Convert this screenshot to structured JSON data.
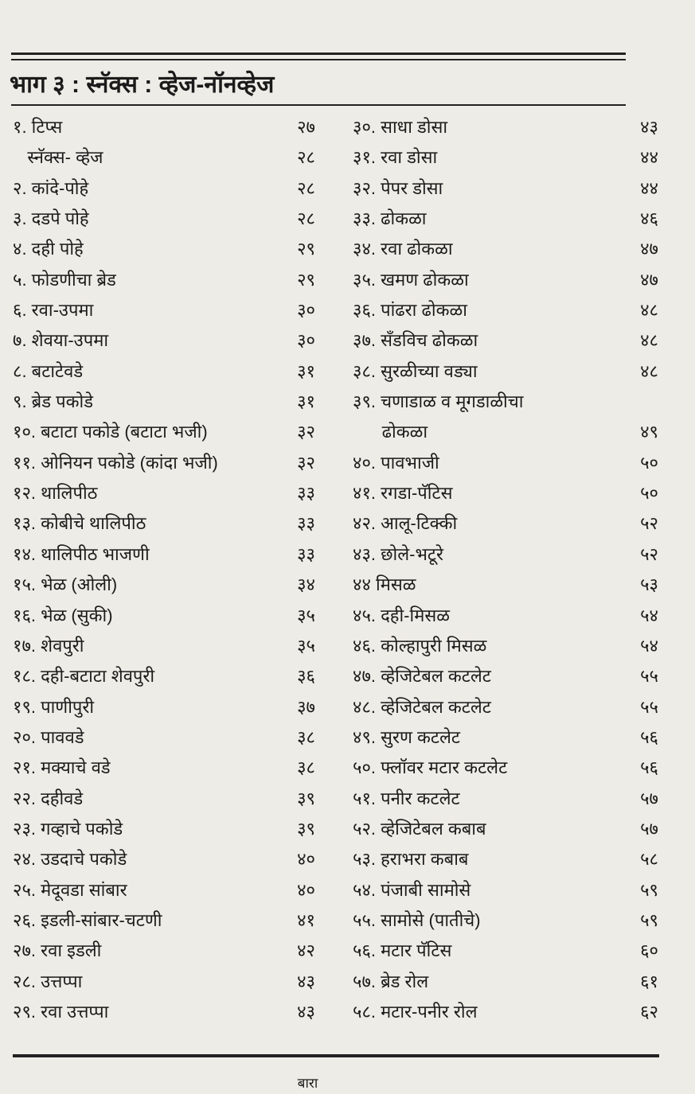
{
  "title": "भाग ३ : स्नॅक्स : व्हेज-नॉनव्हेज",
  "left_entries": [
    {
      "text": "१. टिप्स",
      "page": "२७"
    },
    {
      "text": "   स्नॅक्स- व्हेज",
      "page": "२८"
    },
    {
      "text": "२. कांदे-पोहे",
      "page": "२८"
    },
    {
      "text": "३. दडपे पोहे",
      "page": "२८"
    },
    {
      "text": "४. दही पोहे",
      "page": "२९"
    },
    {
      "text": "५. फोडणीचा ब्रेड",
      "page": "२९"
    },
    {
      "text": "६. रवा-उपमा",
      "page": "३०"
    },
    {
      "text": "७. शेवया-उपमा",
      "page": "३०"
    },
    {
      "text": "८. बटाटेवडे",
      "page": "३१"
    },
    {
      "text": "९. ब्रेड पकोडे",
      "page": "३१"
    },
    {
      "text": "१०. बटाटा पकोडे (बटाटा भजी)",
      "page": "३२"
    },
    {
      "text": "११. ओनियन पकोडे (कांदा भजी)",
      "page": "३२"
    },
    {
      "text": "१२. थालिपीठ",
      "page": "३३"
    },
    {
      "text": "१३. कोबीचे थालिपीठ",
      "page": "३३"
    },
    {
      "text": "१४. थालिपीठ भाजणी",
      "page": "३३"
    },
    {
      "text": "१५. भेळ (ओली)",
      "page": "३४"
    },
    {
      "text": "१६. भेळ (सुकी)",
      "page": "३५"
    },
    {
      "text": "१७. शेवपुरी",
      "page": "३५"
    },
    {
      "text": "१८. दही-बटाटा शेवपुरी",
      "page": "३६"
    },
    {
      "text": "१९. पाणीपुरी",
      "page": "३७"
    },
    {
      "text": "२०. पाववडे",
      "page": "३८"
    },
    {
      "text": "२१. मक्याचे वडे",
      "page": "३८"
    },
    {
      "text": "२२. दहीवडे",
      "page": "३९"
    },
    {
      "text": "२३. गव्हाचे पकोडे",
      "page": "३९"
    },
    {
      "text": "२४. उडदाचे पकोडे",
      "page": "४०"
    },
    {
      "text": "२५. मेदूवडा सांबार",
      "page": "४०"
    },
    {
      "text": "२६. इडली-सांबार-चटणी",
      "page": "४१"
    },
    {
      "text": "२७. रवा इडली",
      "page": "४२"
    },
    {
      "text": "२८. उत्तप्पा",
      "page": "४३"
    },
    {
      "text": "२९. रवा उत्तप्पा",
      "page": "४३"
    }
  ],
  "right_entries": [
    {
      "text": "३०. साधा डोसा",
      "page": "४३"
    },
    {
      "text": "३१. रवा डोसा",
      "page": "४४"
    },
    {
      "text": "३२. पेपर डोसा",
      "page": "४४"
    },
    {
      "text": "३३. ढोकळा",
      "page": "४६"
    },
    {
      "text": "३४. रवा ढोकळा",
      "page": "४७"
    },
    {
      "text": "३५. खमण ढोकळा",
      "page": "४७"
    },
    {
      "text": "३६. पांढरा ढोकळा",
      "page": "४८"
    },
    {
      "text": "३७. सँडविच ढोकळा",
      "page": "४८"
    },
    {
      "text": "३८. सुरळीच्या वड्या",
      "page": "४८"
    },
    {
      "text": "३९. चणाडाळ व मूगडाळीचा",
      "page": ""
    },
    {
      "text": "      ढोकळा",
      "page": "४९"
    },
    {
      "text": "४०. पावभाजी",
      "page": "५०"
    },
    {
      "text": "४१. रगडा-पॅटिस",
      "page": "५०"
    },
    {
      "text": "४२. आलू-टिक्की",
      "page": "५२"
    },
    {
      "text": "४३. छोले-भटूरे",
      "page": "५२"
    },
    {
      "text": "४४ मिसळ",
      "page": "५३"
    },
    {
      "text": "४५. दही-मिसळ",
      "page": "५४"
    },
    {
      "text": "४६. कोल्हापुरी मिसळ",
      "page": "५४"
    },
    {
      "text": "४७. व्हेजिटेबल कटलेट",
      "page": "५५"
    },
    {
      "text": "४८. व्हेजिटेबल कटलेट",
      "page": "५५"
    },
    {
      "text": "४९. सुरण कटलेट",
      "page": "५६"
    },
    {
      "text": "५०. फ्लॉवर मटार कटलेट",
      "page": "५६"
    },
    {
      "text": "५१. पनीर कटलेट",
      "page": "५७"
    },
    {
      "text": "५२. व्हेजिटेबल कबाब",
      "page": "५७"
    },
    {
      "text": "५३. हराभरा कबाब",
      "page": "५८"
    },
    {
      "text": "५४. पंजाबी सामोसे",
      "page": "५९"
    },
    {
      "text": "५५. सामोसे (पातीचे)",
      "page": "५९"
    },
    {
      "text": "५६. मटार पॅटिस",
      "page": "६०"
    },
    {
      "text": "५७. ब्रेड रोल",
      "page": "६१"
    },
    {
      "text": "५८. मटार-पनीर रोल",
      "page": "६२"
    }
  ],
  "footer": "बारा"
}
